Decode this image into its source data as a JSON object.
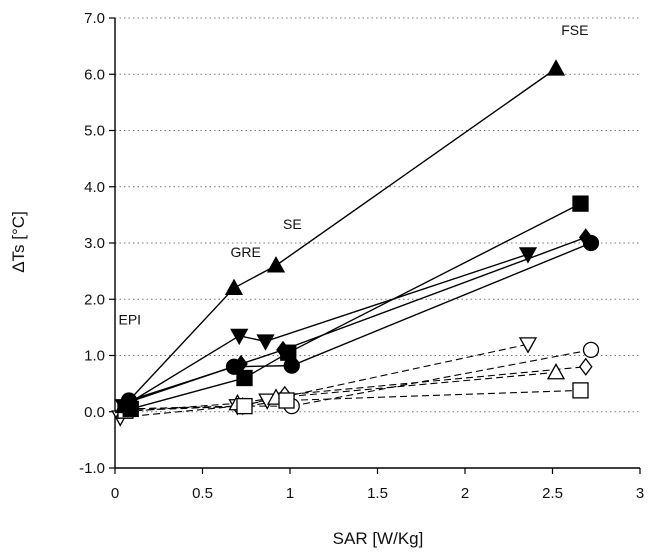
{
  "chart_data": {
    "type": "scatter",
    "title": "",
    "xlabel": "SAR [W/Kg]",
    "ylabel": "ΔTs  [°C]",
    "xlim": [
      0,
      3
    ],
    "ylim": [
      -1,
      7
    ],
    "x_ticks": [
      "0",
      "0.5",
      "1",
      "1.5",
      "2",
      "2.5",
      "3"
    ],
    "y_ticks": [
      "-1.0",
      "0.0",
      "1.0",
      "2.0",
      "3.0",
      "4.0",
      "5.0",
      "6.0",
      "7.0"
    ],
    "grid": "horizontal dotted",
    "annotations": [
      {
        "text": "FSE",
        "x": 2.55,
        "y": 6.7
      },
      {
        "text": "SE",
        "x": 0.96,
        "y": 3.25
      },
      {
        "text": "GRE",
        "x": 0.66,
        "y": 2.75
      },
      {
        "text": "EPI",
        "x": 0.02,
        "y": 1.55
      }
    ],
    "series": [
      {
        "style": "solid",
        "marker": "triangle-up",
        "filled": true,
        "x": [
          0.05,
          0.68,
          0.92,
          2.52
        ],
        "y": [
          0.1,
          2.2,
          2.6,
          6.1
        ]
      },
      {
        "style": "solid",
        "marker": "square",
        "filled": true,
        "x": [
          0.09,
          0.74,
          0.99,
          2.66
        ],
        "y": [
          0.05,
          0.6,
          1.05,
          3.7
        ]
      },
      {
        "style": "solid",
        "marker": "triangle-down",
        "filled": true,
        "x": [
          0.05,
          0.71,
          0.86,
          2.36
        ],
        "y": [
          0.1,
          1.35,
          1.25,
          2.8
        ]
      },
      {
        "style": "solid",
        "marker": "diamond",
        "filled": true,
        "x": [
          0.06,
          0.72,
          0.96,
          2.69
        ],
        "y": [
          0.15,
          0.85,
          1.1,
          3.1
        ]
      },
      {
        "style": "solid",
        "marker": "circle",
        "filled": true,
        "x": [
          0.08,
          0.68,
          1.01,
          2.72
        ],
        "y": [
          0.2,
          0.8,
          0.82,
          3.0
        ]
      },
      {
        "style": "dashed",
        "marker": "triangle-down",
        "filled": false,
        "x": [
          0.03,
          0.7,
          0.87,
          2.36
        ],
        "y": [
          -0.1,
          0.1,
          0.2,
          1.2
        ]
      },
      {
        "style": "dashed",
        "marker": "circle",
        "filled": false,
        "x": [
          0.07,
          0.72,
          1.01,
          2.72
        ],
        "y": [
          0.05,
          0.1,
          0.1,
          1.1
        ]
      },
      {
        "style": "dashed",
        "marker": "diamond",
        "filled": false,
        "x": [
          0.07,
          0.73,
          0.97,
          2.69
        ],
        "y": [
          0.05,
          0.1,
          0.3,
          0.8
        ]
      },
      {
        "style": "dashed",
        "marker": "triangle-up",
        "filled": false,
        "x": [
          0.05,
          0.7,
          0.92,
          2.52
        ],
        "y": [
          0.0,
          0.15,
          0.25,
          0.7
        ]
      },
      {
        "style": "dashed",
        "marker": "square",
        "filled": false,
        "x": [
          0.06,
          0.74,
          0.98,
          2.66
        ],
        "y": [
          0.02,
          0.1,
          0.2,
          0.38
        ]
      }
    ]
  }
}
